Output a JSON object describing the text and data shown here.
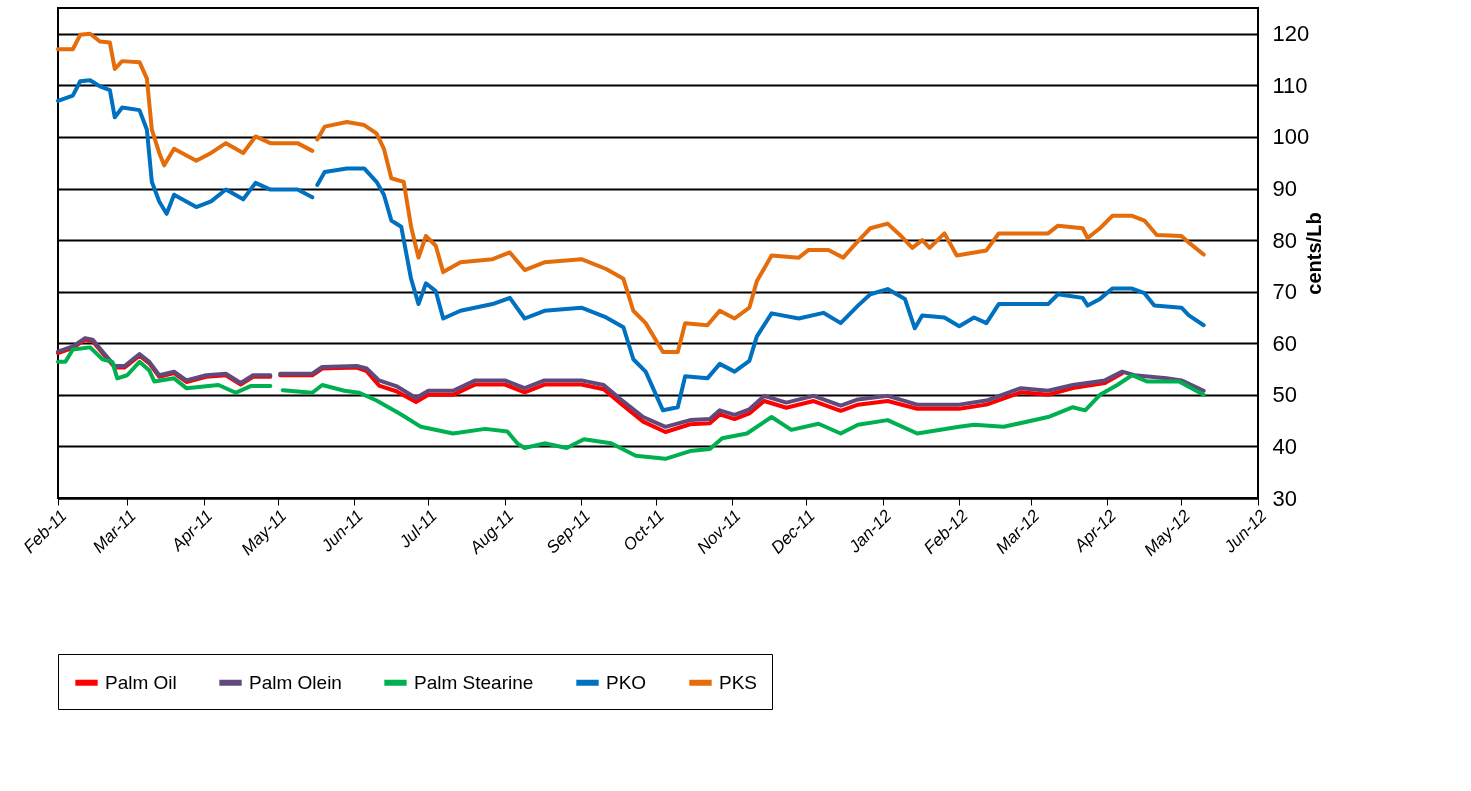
{
  "chart_data": {
    "type": "line",
    "ylabel": "cents/Lb",
    "ylim": [
      30,
      125
    ],
    "yticks": [
      30,
      40,
      50,
      60,
      70,
      80,
      90,
      100,
      110,
      120
    ],
    "xlim": [
      "2011-02-01",
      "2012-06-01"
    ],
    "xticks": [
      {
        "value": "2011-02-01",
        "label": "Feb-11"
      },
      {
        "value": "2011-03-01",
        "label": "Mar-11"
      },
      {
        "value": "2011-04-01",
        "label": "Apr-11"
      },
      {
        "value": "2011-05-01",
        "label": "May-11"
      },
      {
        "value": "2011-06-01",
        "label": "Jun-11"
      },
      {
        "value": "2011-07-01",
        "label": "Jul-11"
      },
      {
        "value": "2011-08-01",
        "label": "Aug-11"
      },
      {
        "value": "2011-09-01",
        "label": "Sep-11"
      },
      {
        "value": "2011-10-01",
        "label": "Oct-11"
      },
      {
        "value": "2011-11-01",
        "label": "Nov-11"
      },
      {
        "value": "2011-12-01",
        "label": "Dec-11"
      },
      {
        "value": "2012-01-01",
        "label": "Jan-12"
      },
      {
        "value": "2012-02-01",
        "label": "Feb-12"
      },
      {
        "value": "2012-03-01",
        "label": "Mar-12"
      },
      {
        "value": "2012-04-01",
        "label": "Apr-12"
      },
      {
        "value": "2012-05-01",
        "label": "May-12"
      },
      {
        "value": "2012-06-01",
        "label": "Jun-12"
      }
    ],
    "grid": "y",
    "legend": "bottom",
    "marker": "none",
    "line_style": "solid",
    "series": [
      {
        "name": "Palm Oil",
        "color": "#ff0000",
        "x": [
          "2011-02-01",
          "2011-02-07",
          "2011-02-12",
          "2011-02-15",
          "2011-02-19",
          "2011-02-24",
          "2011-02-28",
          "2011-03-06",
          "2011-03-10",
          "2011-03-14",
          "2011-03-20",
          "2011-03-25",
          "2011-04-02",
          "2011-04-10",
          "2011-04-16",
          "2011-04-21",
          "2011-04-28",
          "2011-04-30",
          "2011-05-02",
          "2011-05-15",
          "2011-05-19",
          "2011-06-02",
          "2011-06-06",
          "2011-06-11",
          "2011-06-18",
          "2011-06-26",
          "2011-07-01",
          "2011-07-11",
          "2011-07-20",
          "2011-08-01",
          "2011-08-09",
          "2011-08-17",
          "2011-09-01",
          "2011-09-10",
          "2011-09-17",
          "2011-09-26",
          "2011-10-05",
          "2011-10-15",
          "2011-10-23",
          "2011-10-27",
          "2011-11-02",
          "2011-11-08",
          "2011-11-14",
          "2011-11-23",
          "2011-12-04",
          "2011-12-15",
          "2011-12-22",
          "2012-01-03",
          "2012-01-15",
          "2012-02-01",
          "2012-02-12",
          "2012-02-26",
          "2012-03-08",
          "2012-03-18",
          "2012-03-31",
          "2012-04-07"
        ],
        "values": [
          58.1,
          59.1,
          60.7,
          60.4,
          58.1,
          55.3,
          55.3,
          57.6,
          56.1,
          53.5,
          54.2,
          52.5,
          53.5,
          53.8,
          52,
          53.5,
          53.5,
          null,
          53.8,
          53.8,
          55.1,
          55.3,
          54.6,
          51.8,
          50.7,
          48.6,
          50,
          50,
          52,
          52,
          50.5,
          52,
          52,
          51.1,
          48.3,
          44.8,
          42.8,
          44.3,
          44.5,
          46.2,
          45.3,
          46.4,
          48.8,
          47.5,
          48.8,
          46.9,
          48.1,
          48.8,
          47.3,
          47.3,
          48.1,
          50.5,
          50,
          51.3,
          52.3,
          54.2
        ]
      },
      {
        "name": "Palm Olein",
        "color": "#604a7b",
        "x": [
          "2011-02-01",
          "2011-02-07",
          "2011-02-12",
          "2011-02-15",
          "2011-02-19",
          "2011-02-24",
          "2011-02-28",
          "2011-03-06",
          "2011-03-10",
          "2011-03-14",
          "2011-03-20",
          "2011-03-25",
          "2011-04-02",
          "2011-04-10",
          "2011-04-16",
          "2011-04-21",
          "2011-04-28",
          "2011-04-30",
          "2011-05-02",
          "2011-05-15",
          "2011-05-19",
          "2011-06-02",
          "2011-06-06",
          "2011-06-11",
          "2011-06-18",
          "2011-06-26",
          "2011-07-01",
          "2011-07-11",
          "2011-07-20",
          "2011-08-01",
          "2011-08-09",
          "2011-08-17",
          "2011-09-01",
          "2011-09-10",
          "2011-09-17",
          "2011-09-26",
          "2011-10-05",
          "2011-10-15",
          "2011-10-23",
          "2011-10-27",
          "2011-11-02",
          "2011-11-08",
          "2011-11-14",
          "2011-11-23",
          "2011-12-04",
          "2011-12-15",
          "2011-12-22",
          "2012-01-03",
          "2012-01-15",
          "2012-02-01",
          "2012-02-12",
          "2012-02-26",
          "2012-03-08",
          "2012-03-18",
          "2012-03-31",
          "2012-04-07",
          "2012-04-12",
          "2012-04-25",
          "2012-05-01",
          "2012-05-10"
        ],
        "values": [
          58.4,
          59.4,
          61,
          60.7,
          58.4,
          55.6,
          55.6,
          57.9,
          56.4,
          53.8,
          54.5,
          52.8,
          53.8,
          54.1,
          52.3,
          53.8,
          53.8,
          null,
          54.1,
          54.1,
          55.4,
          55.6,
          55.1,
          52.8,
          51.7,
          49.4,
          50.8,
          50.8,
          52.8,
          52.8,
          51.3,
          52.8,
          52.8,
          51.9,
          49.1,
          45.7,
          43.8,
          45.1,
          45.3,
          47,
          46.1,
          47.2,
          49.8,
          48.5,
          49.8,
          47.9,
          49.1,
          49.8,
          48.1,
          48.1,
          48.9,
          51.3,
          50.8,
          51.9,
          52.8,
          54.5,
          53.8,
          53.2,
          52.8,
          50.8
        ]
      },
      {
        "name": "Palm Stearine",
        "color": "#00b050",
        "x": [
          "2011-02-01",
          "2011-02-04",
          "2011-02-07",
          "2011-02-14",
          "2011-02-19",
          "2011-02-23",
          "2011-02-25",
          "2011-03-01",
          "2011-03-06",
          "2011-03-10",
          "2011-03-12",
          "2011-03-20",
          "2011-03-25",
          "2011-04-07",
          "2011-04-14",
          "2011-04-20",
          "2011-04-28",
          "2011-04-30",
          "2011-05-03",
          "2011-05-15",
          "2011-05-19",
          "2011-05-28",
          "2011-06-03",
          "2011-06-10",
          "2011-06-20",
          "2011-06-28",
          "2011-07-11",
          "2011-07-24",
          "2011-08-02",
          "2011-08-06",
          "2011-08-09",
          "2011-08-17",
          "2011-08-26",
          "2011-09-02",
          "2011-09-13",
          "2011-09-23",
          "2011-10-05",
          "2011-10-15",
          "2011-10-23",
          "2011-10-28",
          "2011-11-07",
          "2011-11-17",
          "2011-11-25",
          "2011-12-06",
          "2011-12-15",
          "2011-12-22",
          "2012-01-03",
          "2012-01-15",
          "2012-02-01",
          "2012-02-07",
          "2012-02-19",
          "2012-03-08",
          "2012-03-18",
          "2012-03-23",
          "2012-03-29",
          "2012-04-05",
          "2012-04-11",
          "2012-04-17",
          "2012-04-30",
          "2012-05-10"
        ],
        "values": [
          56.4,
          56.4,
          58.8,
          59.2,
          56.9,
          56.4,
          53.2,
          53.8,
          56.4,
          54.7,
          52.6,
          53.2,
          51.3,
          51.9,
          50.4,
          51.7,
          51.7,
          null,
          50.9,
          50.4,
          51.9,
          50.8,
          50.4,
          48.9,
          46.2,
          43.8,
          42.5,
          43.4,
          42.9,
          40.6,
          39.7,
          40.6,
          39.7,
          41.4,
          40.6,
          38.2,
          37.6,
          39.1,
          39.5,
          41.6,
          42.5,
          45.7,
          43.2,
          44.4,
          42.5,
          44.2,
          45.1,
          42.5,
          43.8,
          44.2,
          43.8,
          45.7,
          47.6,
          47,
          50,
          51.9,
          53.8,
          52.6,
          52.6,
          50
        ]
      },
      {
        "name": "PKO",
        "color": "#0070c0",
        "x": [
          "2011-02-01",
          "2011-02-07",
          "2011-02-10",
          "2011-02-14",
          "2011-02-18",
          "2011-02-22",
          "2011-02-24",
          "2011-02-27",
          "2011-03-06",
          "2011-03-09",
          "2011-03-11",
          "2011-03-14",
          "2011-03-17",
          "2011-03-20",
          "2011-03-29",
          "2011-04-04",
          "2011-04-10",
          "2011-04-17",
          "2011-04-22",
          "2011-04-28",
          "2011-05-09",
          "2011-05-15",
          "2011-05-16",
          "2011-05-17",
          "2011-05-20",
          "2011-05-29",
          "2011-06-05",
          "2011-06-10",
          "2011-06-13",
          "2011-06-16",
          "2011-06-20",
          "2011-06-24",
          "2011-06-27",
          "2011-06-30",
          "2011-07-04",
          "2011-07-07",
          "2011-07-14",
          "2011-07-27",
          "2011-08-03",
          "2011-08-09",
          "2011-08-17",
          "2011-09-01",
          "2011-09-11",
          "2011-09-18",
          "2011-09-22",
          "2011-09-27",
          "2011-10-04",
          "2011-10-10",
          "2011-10-13",
          "2011-10-22",
          "2011-10-27",
          "2011-11-02",
          "2011-11-08",
          "2011-11-11",
          "2011-11-17",
          "2011-11-28",
          "2011-12-08",
          "2011-12-15",
          "2011-12-22",
          "2011-12-27",
          "2012-01-03",
          "2012-01-10",
          "2012-01-14",
          "2012-01-17",
          "2012-01-26",
          "2012-02-01",
          "2012-02-07",
          "2012-02-12",
          "2012-02-17",
          "2012-03-08",
          "2012-03-12",
          "2012-03-22",
          "2012-03-24",
          "2012-03-29",
          "2012-04-03",
          "2012-04-11",
          "2012-04-16",
          "2012-04-20",
          "2012-05-01",
          "2012-05-04",
          "2012-05-10"
        ],
        "values": [
          107,
          108,
          110.8,
          111,
          109.8,
          109.1,
          103.8,
          105.7,
          105.2,
          101.4,
          91.3,
          87.5,
          85.1,
          88.8,
          86.4,
          87.5,
          89.8,
          87.9,
          91.1,
          89.8,
          89.8,
          88.3,
          null,
          90.7,
          93.2,
          93.9,
          93.9,
          91.3,
          88.8,
          83.8,
          82.6,
          72.5,
          67.6,
          71.6,
          70.1,
          64.8,
          66.3,
          67.6,
          68.8,
          64.8,
          66.3,
          66.9,
          65,
          63.1,
          56.9,
          54.5,
          47,
          47.6,
          53.6,
          53.2,
          56,
          54.5,
          56.6,
          61.3,
          65.8,
          64.8,
          65.9,
          63.9,
          67.3,
          69.5,
          70.5,
          68.6,
          62.9,
          65.4,
          65,
          63.3,
          65,
          63.9,
          67.6,
          67.6,
          69.5,
          68.8,
          67.3,
          68.6,
          70.6,
          70.6,
          69.7,
          67.3,
          66.9,
          65.4,
          63.5
        ]
      },
      {
        "name": "PKS",
        "color": "#e46c0a",
        "x": [
          "2011-02-01",
          "2011-02-07",
          "2011-02-10",
          "2011-02-14",
          "2011-02-18",
          "2011-02-22",
          "2011-02-24",
          "2011-02-27",
          "2011-03-06",
          "2011-03-09",
          "2011-03-11",
          "2011-03-14",
          "2011-03-16",
          "2011-03-20",
          "2011-03-29",
          "2011-04-04",
          "2011-04-10",
          "2011-04-17",
          "2011-04-22",
          "2011-04-28",
          "2011-05-09",
          "2011-05-15",
          "2011-05-16",
          "2011-05-17",
          "2011-05-20",
          "2011-05-29",
          "2011-06-05",
          "2011-06-10",
          "2011-06-13",
          "2011-06-16",
          "2011-06-21",
          "2011-06-24",
          "2011-06-27",
          "2011-06-30",
          "2011-07-04",
          "2011-07-07",
          "2011-07-14",
          "2011-07-27",
          "2011-08-03",
          "2011-08-09",
          "2011-08-17",
          "2011-09-01",
          "2011-09-11",
          "2011-09-18",
          "2011-09-22",
          "2011-09-27",
          "2011-10-04",
          "2011-10-10",
          "2011-10-13",
          "2011-10-22",
          "2011-10-27",
          "2011-11-02",
          "2011-11-08",
          "2011-11-11",
          "2011-11-17",
          "2011-11-28",
          "2011-12-02",
          "2011-12-10",
          "2011-12-16",
          "2011-12-22",
          "2011-12-27",
          "2012-01-03",
          "2012-01-08",
          "2012-01-13",
          "2012-01-17",
          "2012-01-20",
          "2012-01-26",
          "2012-01-31",
          "2012-02-12",
          "2012-02-17",
          "2012-03-08",
          "2012-03-12",
          "2012-03-22",
          "2012-03-24",
          "2012-03-29",
          "2012-04-03",
          "2012-04-11",
          "2012-04-16",
          "2012-04-21",
          "2012-05-01",
          "2012-05-04",
          "2012-05-10"
        ],
        "values": [
          117,
          117,
          119.8,
          120,
          118.5,
          118.3,
          113.2,
          114.7,
          114.5,
          111.3,
          101.4,
          96.9,
          94.5,
          97.7,
          95.4,
          96.9,
          98.8,
          96.9,
          100.1,
          98.8,
          98.8,
          97.3,
          null,
          99.5,
          102,
          102.9,
          102.3,
          100.7,
          97.7,
          92,
          91.3,
          82.6,
          76.6,
          80.8,
          78.9,
          73.8,
          75.7,
          76.3,
          77.6,
          74.2,
          75.7,
          76.3,
          74.4,
          72.5,
          66.3,
          63.9,
          58.3,
          58.3,
          63.9,
          63.5,
          66.3,
          64.8,
          66.9,
          72,
          77,
          76.6,
          78.1,
          78.1,
          76.6,
          79.8,
          82.3,
          83.2,
          81,
          78.5,
          80,
          78.5,
          81.3,
          77,
          78,
          81.3,
          81.3,
          82.8,
          82.3,
          80.4,
          82.3,
          84.7,
          84.7,
          83.8,
          81,
          80.8,
          79.5,
          77.2
        ]
      }
    ]
  }
}
